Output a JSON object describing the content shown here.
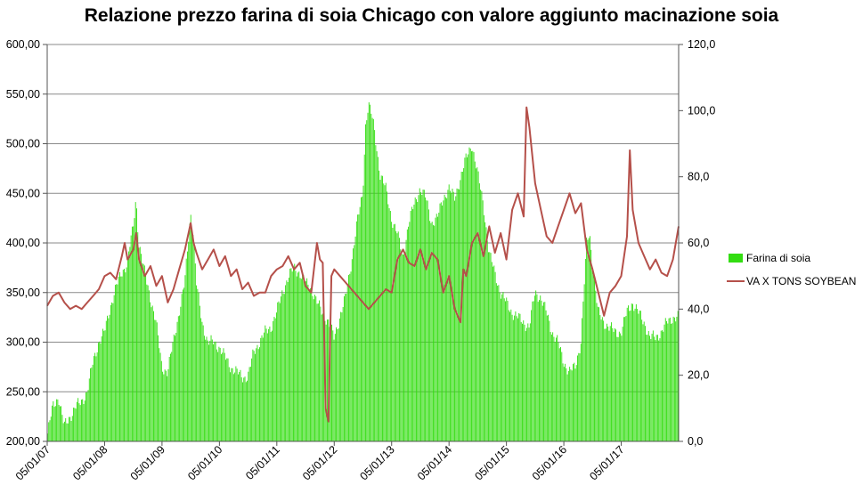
{
  "chart_data": {
    "type": "bar+line",
    "title": "Relazione prezzo farina di soia Chicago con valore aggiunto macinazione soia",
    "x_tick_labels": [
      "05/01/07",
      "05/01/08",
      "05/01/09",
      "05/01/10",
      "05/01/11",
      "05/01/12",
      "05/01/13",
      "05/01/14",
      "05/01/15",
      "05/01/16",
      "05/01/17"
    ],
    "y_left": {
      "min": 200,
      "max": 600,
      "step": 50,
      "tick_labels": [
        "200,00",
        "250,00",
        "300,00",
        "350,00",
        "400,00",
        "450,00",
        "500,00",
        "550,00",
        "600,00"
      ]
    },
    "y_right": {
      "min": 0,
      "max": 120,
      "step": 20,
      "tick_labels": [
        "0,0",
        "20,0",
        "40,0",
        "60,0",
        "80,0",
        "100,0",
        "120,0"
      ]
    },
    "grid": "horizontal",
    "legend_position": "right",
    "x_range": [
      2007.0,
      2018.0
    ],
    "series": [
      {
        "name": "Farina di soia",
        "kind": "bar",
        "axis": "left",
        "color": "#33dd11",
        "points": [
          [
            2007.0,
            205
          ],
          [
            2007.1,
            235
          ],
          [
            2007.2,
            245
          ],
          [
            2007.3,
            215
          ],
          [
            2007.4,
            225
          ],
          [
            2007.5,
            235
          ],
          [
            2007.6,
            240
          ],
          [
            2007.7,
            250
          ],
          [
            2007.8,
            280
          ],
          [
            2007.9,
            300
          ],
          [
            2008.0,
            310
          ],
          [
            2008.1,
            335
          ],
          [
            2008.2,
            355
          ],
          [
            2008.3,
            370
          ],
          [
            2008.4,
            380
          ],
          [
            2008.45,
            400
          ],
          [
            2008.5,
            415
          ],
          [
            2008.55,
            445
          ],
          [
            2008.6,
            400
          ],
          [
            2008.7,
            370
          ],
          [
            2008.8,
            345
          ],
          [
            2008.9,
            320
          ],
          [
            2009.0,
            275
          ],
          [
            2009.1,
            270
          ],
          [
            2009.2,
            300
          ],
          [
            2009.3,
            330
          ],
          [
            2009.4,
            360
          ],
          [
            2009.5,
            430
          ],
          [
            2009.55,
            410
          ],
          [
            2009.6,
            360
          ],
          [
            2009.7,
            320
          ],
          [
            2009.8,
            300
          ],
          [
            2009.9,
            300
          ],
          [
            2010.0,
            295
          ],
          [
            2010.1,
            285
          ],
          [
            2010.2,
            275
          ],
          [
            2010.3,
            270
          ],
          [
            2010.4,
            265
          ],
          [
            2010.5,
            265
          ],
          [
            2010.6,
            290
          ],
          [
            2010.7,
            300
          ],
          [
            2010.8,
            310
          ],
          [
            2010.9,
            315
          ],
          [
            2011.0,
            330
          ],
          [
            2011.1,
            350
          ],
          [
            2011.2,
            365
          ],
          [
            2011.3,
            375
          ],
          [
            2011.4,
            370
          ],
          [
            2011.5,
            360
          ],
          [
            2011.6,
            355
          ],
          [
            2011.7,
            340
          ],
          [
            2011.8,
            330
          ],
          [
            2011.9,
            320
          ],
          [
            2012.0,
            305
          ],
          [
            2012.1,
            325
          ],
          [
            2012.2,
            345
          ],
          [
            2012.3,
            380
          ],
          [
            2012.4,
            420
          ],
          [
            2012.5,
            450
          ],
          [
            2012.55,
            520
          ],
          [
            2012.6,
            540
          ],
          [
            2012.65,
            530
          ],
          [
            2012.7,
            515
          ],
          [
            2012.8,
            470
          ],
          [
            2012.9,
            455
          ],
          [
            2013.0,
            425
          ],
          [
            2013.1,
            410
          ],
          [
            2013.2,
            385
          ],
          [
            2013.3,
            420
          ],
          [
            2013.4,
            440
          ],
          [
            2013.5,
            455
          ],
          [
            2013.6,
            445
          ],
          [
            2013.7,
            420
          ],
          [
            2013.8,
            425
          ],
          [
            2013.9,
            445
          ],
          [
            2014.0,
            455
          ],
          [
            2014.1,
            445
          ],
          [
            2014.2,
            465
          ],
          [
            2014.3,
            485
          ],
          [
            2014.4,
            500
          ],
          [
            2014.5,
            470
          ],
          [
            2014.6,
            440
          ],
          [
            2014.7,
            390
          ],
          [
            2014.8,
            370
          ],
          [
            2014.9,
            350
          ],
          [
            2015.0,
            340
          ],
          [
            2015.1,
            330
          ],
          [
            2015.2,
            325
          ],
          [
            2015.3,
            320
          ],
          [
            2015.4,
            315
          ],
          [
            2015.5,
            350
          ],
          [
            2015.6,
            345
          ],
          [
            2015.7,
            330
          ],
          [
            2015.8,
            310
          ],
          [
            2015.9,
            300
          ],
          [
            2016.0,
            280
          ],
          [
            2016.1,
            270
          ],
          [
            2016.2,
            275
          ],
          [
            2016.3,
            300
          ],
          [
            2016.4,
            400
          ],
          [
            2016.45,
            410
          ],
          [
            2016.5,
            380
          ],
          [
            2016.6,
            330
          ],
          [
            2016.7,
            320
          ],
          [
            2016.8,
            315
          ],
          [
            2016.9,
            310
          ],
          [
            2017.0,
            310
          ],
          [
            2017.1,
            330
          ],
          [
            2017.2,
            340
          ],
          [
            2017.3,
            330
          ],
          [
            2017.4,
            320
          ],
          [
            2017.5,
            305
          ],
          [
            2017.6,
            305
          ],
          [
            2017.7,
            310
          ],
          [
            2017.8,
            320
          ],
          [
            2017.9,
            325
          ],
          [
            2018.0,
            325
          ]
        ]
      },
      {
        "name": "VA  X TONS SOYBEAN",
        "kind": "line",
        "axis": "right",
        "color": "#b5504a",
        "points": [
          [
            2007.0,
            41
          ],
          [
            2007.1,
            44
          ],
          [
            2007.2,
            45
          ],
          [
            2007.3,
            42
          ],
          [
            2007.4,
            40
          ],
          [
            2007.5,
            41
          ],
          [
            2007.6,
            40
          ],
          [
            2007.7,
            42
          ],
          [
            2007.8,
            44
          ],
          [
            2007.9,
            46
          ],
          [
            2008.0,
            50
          ],
          [
            2008.1,
            51
          ],
          [
            2008.2,
            49
          ],
          [
            2008.3,
            56
          ],
          [
            2008.35,
            60
          ],
          [
            2008.4,
            55
          ],
          [
            2008.5,
            58
          ],
          [
            2008.55,
            63
          ],
          [
            2008.6,
            55
          ],
          [
            2008.7,
            50
          ],
          [
            2008.8,
            53
          ],
          [
            2008.9,
            47
          ],
          [
            2009.0,
            50
          ],
          [
            2009.1,
            42
          ],
          [
            2009.2,
            46
          ],
          [
            2009.3,
            52
          ],
          [
            2009.4,
            58
          ],
          [
            2009.5,
            66
          ],
          [
            2009.55,
            60
          ],
          [
            2009.6,
            57
          ],
          [
            2009.7,
            52
          ],
          [
            2009.8,
            55
          ],
          [
            2009.9,
            58
          ],
          [
            2010.0,
            53
          ],
          [
            2010.1,
            56
          ],
          [
            2010.2,
            50
          ],
          [
            2010.3,
            52
          ],
          [
            2010.4,
            46
          ],
          [
            2010.5,
            48
          ],
          [
            2010.6,
            44
          ],
          [
            2010.7,
            45
          ],
          [
            2010.8,
            45
          ],
          [
            2010.9,
            50
          ],
          [
            2011.0,
            52
          ],
          [
            2011.1,
            53
          ],
          [
            2011.2,
            56
          ],
          [
            2011.3,
            52
          ],
          [
            2011.4,
            54
          ],
          [
            2011.5,
            47
          ],
          [
            2011.6,
            45
          ],
          [
            2011.7,
            60
          ],
          [
            2011.75,
            55
          ],
          [
            2011.8,
            54
          ],
          [
            2011.85,
            10
          ],
          [
            2011.9,
            6
          ],
          [
            2011.95,
            50
          ],
          [
            2012.0,
            52
          ],
          [
            2012.1,
            50
          ],
          [
            2012.2,
            48
          ],
          [
            2012.3,
            46
          ],
          [
            2012.4,
            44
          ],
          [
            2012.5,
            42
          ],
          [
            2012.6,
            40
          ],
          [
            2012.7,
            42
          ],
          [
            2012.8,
            44
          ],
          [
            2012.9,
            46
          ],
          [
            2013.0,
            45
          ],
          [
            2013.1,
            55
          ],
          [
            2013.2,
            58
          ],
          [
            2013.3,
            54
          ],
          [
            2013.4,
            53
          ],
          [
            2013.5,
            58
          ],
          [
            2013.6,
            52
          ],
          [
            2013.7,
            57
          ],
          [
            2013.8,
            55
          ],
          [
            2013.9,
            45
          ],
          [
            2014.0,
            50
          ],
          [
            2014.1,
            40
          ],
          [
            2014.2,
            36
          ],
          [
            2014.25,
            52
          ],
          [
            2014.3,
            50
          ],
          [
            2014.4,
            60
          ],
          [
            2014.5,
            63
          ],
          [
            2014.6,
            56
          ],
          [
            2014.7,
            65
          ],
          [
            2014.8,
            57
          ],
          [
            2014.9,
            63
          ],
          [
            2015.0,
            55
          ],
          [
            2015.1,
            70
          ],
          [
            2015.2,
            75
          ],
          [
            2015.3,
            68
          ],
          [
            2015.35,
            101
          ],
          [
            2015.4,
            95
          ],
          [
            2015.5,
            78
          ],
          [
            2015.6,
            70
          ],
          [
            2015.7,
            62
          ],
          [
            2015.8,
            60
          ],
          [
            2015.9,
            65
          ],
          [
            2016.0,
            70
          ],
          [
            2016.1,
            75
          ],
          [
            2016.2,
            69
          ],
          [
            2016.3,
            72
          ],
          [
            2016.4,
            58
          ],
          [
            2016.5,
            52
          ],
          [
            2016.6,
            45
          ],
          [
            2016.7,
            38
          ],
          [
            2016.8,
            45
          ],
          [
            2016.9,
            47
          ],
          [
            2017.0,
            50
          ],
          [
            2017.1,
            62
          ],
          [
            2017.15,
            88
          ],
          [
            2017.2,
            70
          ],
          [
            2017.3,
            60
          ],
          [
            2017.4,
            56
          ],
          [
            2017.5,
            52
          ],
          [
            2017.6,
            55
          ],
          [
            2017.7,
            51
          ],
          [
            2017.8,
            50
          ],
          [
            2017.9,
            55
          ],
          [
            2018.0,
            65
          ]
        ]
      }
    ]
  }
}
